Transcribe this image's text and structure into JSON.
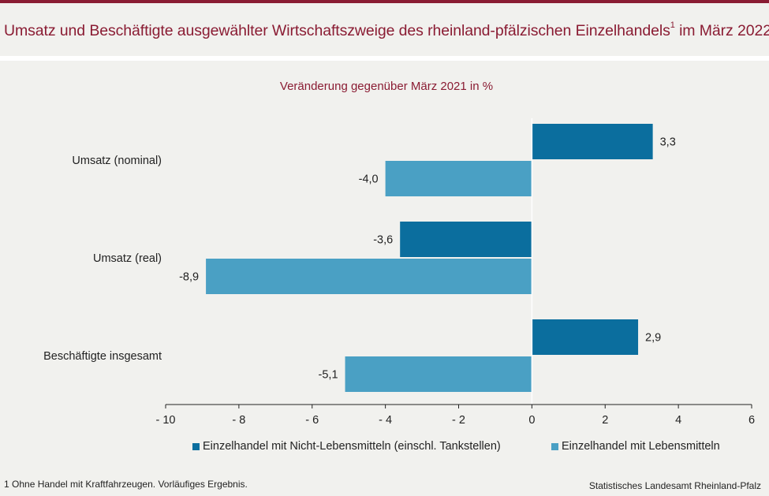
{
  "header": {
    "title": "Umsatz und Beschäftigte ausgewählter Wirtschaftszweige des rheinland-pfälzischen Einzelhandels",
    "title_sup": "1",
    "title_suffix": " im März 2022"
  },
  "chart_data": {
    "type": "bar",
    "orientation": "horizontal",
    "subtitle": "Veränderung gegenüber März 2021 in %",
    "categories": [
      "Umsatz (nominal)",
      "Umsatz (real)",
      "Beschäftigte insgesamt"
    ],
    "series": [
      {
        "name": "Einzelhandel mit Nicht-Lebensmitteln (einschl. Tankstellen)",
        "values": [
          3.3,
          -3.6,
          2.9
        ],
        "labels": [
          "3,3",
          "-3,6",
          "2,9"
        ],
        "color": "#0b6e9e"
      },
      {
        "name": "Einzelhandel mit Lebensmitteln",
        "values": [
          -4.0,
          -8.9,
          -5.1
        ],
        "labels": [
          "-4,0",
          "-8,9",
          "-5,1"
        ],
        "color": "#4aa0c4"
      }
    ],
    "xlim": [
      -10,
      6
    ],
    "xticks": [
      -10,
      -8,
      -6,
      -4,
      -2,
      0,
      2,
      4,
      6
    ],
    "xtick_labels": [
      "- 10",
      "- 8",
      "- 6",
      "- 4",
      "- 2",
      "0",
      "2",
      "4",
      "6"
    ],
    "legend_position": "bottom",
    "grid": false
  },
  "footer": {
    "footnote": "1 Ohne Handel  mit Kraftfahrzeugen.  Vorläufiges  Ergebnis.",
    "source": "Statistisches Landesamt  Rheinland-Pfalz"
  },
  "colors": {
    "accent": "#8a1c33",
    "series_dark": "#0b6e9e",
    "series_light": "#4aa0c4",
    "background": "#f1f1ee"
  }
}
